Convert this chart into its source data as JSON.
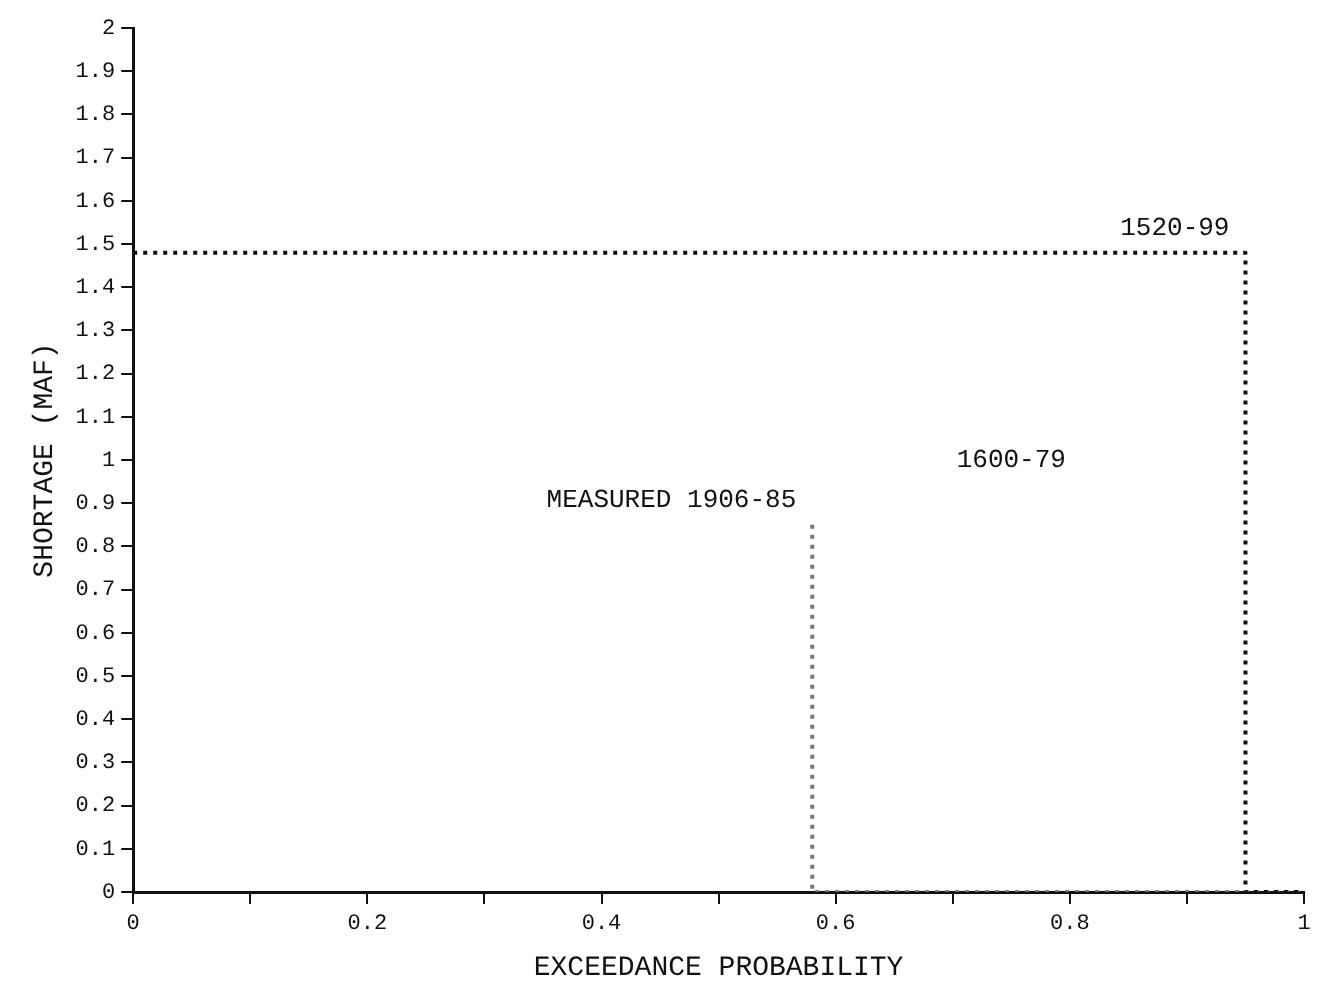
{
  "chart_data": {
    "type": "line",
    "xlabel": "EXCEEDANCE PROBABILITY",
    "ylabel": "SHORTAGE (MAF)",
    "xlim": [
      0,
      1
    ],
    "xticks": [
      0,
      {
        "value": 0.1,
        "label": null
      },
      0.2,
      {
        "value": 0.3,
        "label": null
      },
      0.4,
      {
        "value": 0.5,
        "label": null
      },
      0.6,
      {
        "value": 0.7,
        "label": null
      },
      0.8,
      {
        "value": 0.9,
        "label": null
      },
      1
    ],
    "ylim": [
      0,
      2
    ],
    "yticks": [
      0,
      0.1,
      0.2,
      0.3,
      0.4,
      0.5,
      0.6,
      0.7,
      0.8,
      0.9,
      1,
      1.1,
      1.2,
      1.3,
      1.4,
      1.5,
      1.6,
      1.7,
      1.8,
      1.9,
      2
    ],
    "grid": false,
    "legend": false,
    "marker": "none",
    "line_style": "dotted",
    "series": [
      {
        "name": "1520-99",
        "color": "#111111",
        "x": [
          0,
          0.95,
          0.95,
          1
        ],
        "values": [
          1.48,
          1.48,
          0,
          0
        ]
      },
      {
        "name": "MEASURED 1906-85",
        "color": "#777777",
        "x": [
          0.58,
          0.58,
          1
        ],
        "values": [
          0.85,
          0,
          0
        ]
      }
    ],
    "annotations": [
      "1600-79"
    ]
  }
}
